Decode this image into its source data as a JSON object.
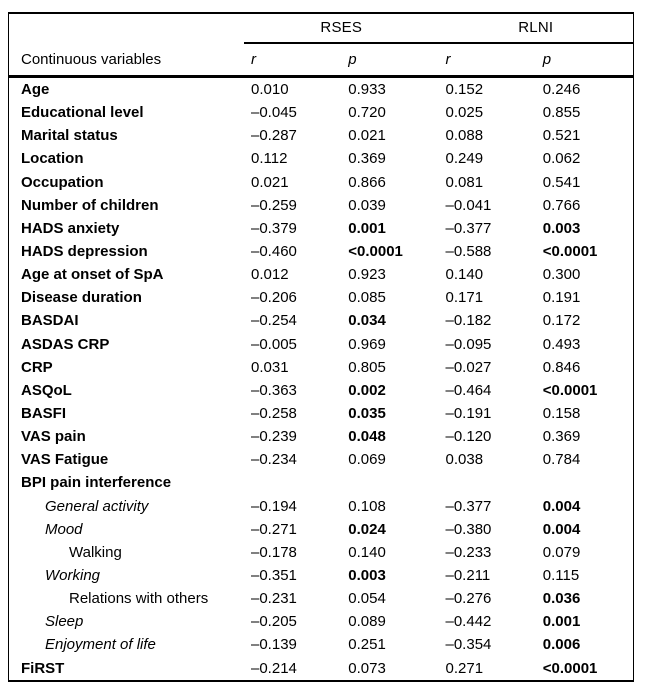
{
  "table": {
    "col_groups": [
      {
        "label": "RSES"
      },
      {
        "label": "RLNI"
      }
    ],
    "header": {
      "stub": "Continuous variables",
      "sub_cols": [
        "r",
        "p",
        "r",
        "p"
      ]
    },
    "rows": [
      {
        "label": "Age",
        "indent": 0,
        "italic": false,
        "bold": true,
        "values": [
          {
            "t": "0.010",
            "b": false
          },
          {
            "t": "0.933",
            "b": false
          },
          {
            "t": "0.152",
            "b": false
          },
          {
            "t": "0.246",
            "b": false
          }
        ]
      },
      {
        "label": "Educational level",
        "indent": 0,
        "italic": false,
        "bold": true,
        "values": [
          {
            "t": "–0.045",
            "b": false
          },
          {
            "t": "0.720",
            "b": false
          },
          {
            "t": "0.025",
            "b": false
          },
          {
            "t": "0.855",
            "b": false
          }
        ]
      },
      {
        "label": "Marital status",
        "indent": 0,
        "italic": false,
        "bold": true,
        "values": [
          {
            "t": "–0.287",
            "b": false
          },
          {
            "t": "0.021",
            "b": false
          },
          {
            "t": "0.088",
            "b": false
          },
          {
            "t": "0.521",
            "b": false
          }
        ]
      },
      {
        "label": "Location",
        "indent": 0,
        "italic": false,
        "bold": true,
        "values": [
          {
            "t": "0.112",
            "b": false
          },
          {
            "t": "0.369",
            "b": false
          },
          {
            "t": "0.249",
            "b": false
          },
          {
            "t": "0.062",
            "b": false
          }
        ]
      },
      {
        "label": "Occupation",
        "indent": 0,
        "italic": false,
        "bold": true,
        "values": [
          {
            "t": "0.021",
            "b": false
          },
          {
            "t": "0.866",
            "b": false
          },
          {
            "t": "0.081",
            "b": false
          },
          {
            "t": "0.541",
            "b": false
          }
        ]
      },
      {
        "label": "Number of children",
        "indent": 0,
        "italic": false,
        "bold": true,
        "values": [
          {
            "t": "–0.259",
            "b": false
          },
          {
            "t": "0.039",
            "b": false
          },
          {
            "t": "–0.041",
            "b": false
          },
          {
            "t": "0.766",
            "b": false
          }
        ]
      },
      {
        "label": "HADS anxiety",
        "indent": 0,
        "italic": false,
        "bold": true,
        "values": [
          {
            "t": "–0.379",
            "b": false
          },
          {
            "t": "0.001",
            "b": true
          },
          {
            "t": "–0.377",
            "b": false
          },
          {
            "t": "0.003",
            "b": true
          }
        ]
      },
      {
        "label": "HADS depression",
        "indent": 0,
        "italic": false,
        "bold": true,
        "values": [
          {
            "t": "–0.460",
            "b": false
          },
          {
            "t": "<0.0001",
            "b": true
          },
          {
            "t": "–0.588",
            "b": false
          },
          {
            "t": "<0.0001",
            "b": true
          }
        ]
      },
      {
        "label": "Age at onset of SpA",
        "indent": 0,
        "italic": false,
        "bold": true,
        "values": [
          {
            "t": "0.012",
            "b": false
          },
          {
            "t": "0.923",
            "b": false
          },
          {
            "t": "0.140",
            "b": false
          },
          {
            "t": "0.300",
            "b": false
          }
        ]
      },
      {
        "label": "Disease duration",
        "indent": 0,
        "italic": false,
        "bold": true,
        "values": [
          {
            "t": "–0.206",
            "b": false
          },
          {
            "t": "0.085",
            "b": false
          },
          {
            "t": "0.171",
            "b": false
          },
          {
            "t": "0.191",
            "b": false
          }
        ]
      },
      {
        "label": "BASDAI",
        "indent": 0,
        "italic": false,
        "bold": true,
        "values": [
          {
            "t": "–0.254",
            "b": false
          },
          {
            "t": "0.034",
            "b": true
          },
          {
            "t": "–0.182",
            "b": false
          },
          {
            "t": "0.172",
            "b": false
          }
        ]
      },
      {
        "label": "ASDAS CRP",
        "indent": 0,
        "italic": false,
        "bold": true,
        "values": [
          {
            "t": "–0.005",
            "b": false
          },
          {
            "t": "0.969",
            "b": false
          },
          {
            "t": "–0.095",
            "b": false
          },
          {
            "t": "0.493",
            "b": false
          }
        ]
      },
      {
        "label": "CRP",
        "indent": 0,
        "italic": false,
        "bold": true,
        "values": [
          {
            "t": "0.031",
            "b": false
          },
          {
            "t": "0.805",
            "b": false
          },
          {
            "t": "–0.027",
            "b": false
          },
          {
            "t": "0.846",
            "b": false
          }
        ]
      },
      {
        "label": "ASQoL",
        "indent": 0,
        "italic": false,
        "bold": true,
        "values": [
          {
            "t": "–0.363",
            "b": false
          },
          {
            "t": "0.002",
            "b": true
          },
          {
            "t": "–0.464",
            "b": false
          },
          {
            "t": "<0.0001",
            "b": true
          }
        ]
      },
      {
        "label": "BASFI",
        "indent": 0,
        "italic": false,
        "bold": true,
        "values": [
          {
            "t": "–0.258",
            "b": false
          },
          {
            "t": "0.035",
            "b": true
          },
          {
            "t": "–0.191",
            "b": false
          },
          {
            "t": "0.158",
            "b": false
          }
        ]
      },
      {
        "label": "VAS pain",
        "indent": 0,
        "italic": false,
        "bold": true,
        "values": [
          {
            "t": "–0.239",
            "b": false
          },
          {
            "t": "0.048",
            "b": true
          },
          {
            "t": "–0.120",
            "b": false
          },
          {
            "t": "0.369",
            "b": false
          }
        ]
      },
      {
        "label": "VAS Fatigue",
        "indent": 0,
        "italic": false,
        "bold": true,
        "values": [
          {
            "t": "–0.234",
            "b": false
          },
          {
            "t": "0.069",
            "b": false
          },
          {
            "t": "0.038",
            "b": false
          },
          {
            "t": "0.784",
            "b": false
          }
        ]
      },
      {
        "label": "BPI pain interference",
        "indent": 0,
        "italic": false,
        "bold": true,
        "values": [
          {
            "t": "",
            "b": false
          },
          {
            "t": "",
            "b": false
          },
          {
            "t": "",
            "b": false
          },
          {
            "t": "",
            "b": false
          }
        ]
      },
      {
        "label": "General activity",
        "indent": 1,
        "italic": true,
        "bold": false,
        "values": [
          {
            "t": "–0.194",
            "b": false
          },
          {
            "t": "0.108",
            "b": false
          },
          {
            "t": "–0.377",
            "b": false
          },
          {
            "t": "0.004",
            "b": true
          }
        ]
      },
      {
        "label": "Mood",
        "indent": 1,
        "italic": true,
        "bold": false,
        "values": [
          {
            "t": "–0.271",
            "b": false
          },
          {
            "t": "0.024",
            "b": true
          },
          {
            "t": "–0.380",
            "b": false
          },
          {
            "t": "0.004",
            "b": true
          }
        ]
      },
      {
        "label": "Walking",
        "indent": 2,
        "italic": false,
        "bold": false,
        "values": [
          {
            "t": "–0.178",
            "b": false
          },
          {
            "t": "0.140",
            "b": false
          },
          {
            "t": "–0.233",
            "b": false
          },
          {
            "t": "0.079",
            "b": false
          }
        ]
      },
      {
        "label": "Working",
        "indent": 1,
        "italic": true,
        "bold": false,
        "values": [
          {
            "t": "–0.351",
            "b": false
          },
          {
            "t": "0.003",
            "b": true
          },
          {
            "t": "–0.211",
            "b": false
          },
          {
            "t": "0.115",
            "b": false
          }
        ]
      },
      {
        "label": "Relations with others",
        "indent": 2,
        "italic": false,
        "bold": false,
        "values": [
          {
            "t": "–0.231",
            "b": false
          },
          {
            "t": "0.054",
            "b": false
          },
          {
            "t": "–0.276",
            "b": false
          },
          {
            "t": "0.036",
            "b": true
          }
        ]
      },
      {
        "label": "Sleep",
        "indent": 1,
        "italic": true,
        "bold": false,
        "values": [
          {
            "t": "–0.205",
            "b": false
          },
          {
            "t": "0.089",
            "b": false
          },
          {
            "t": "–0.442",
            "b": false
          },
          {
            "t": "0.001",
            "b": true
          }
        ]
      },
      {
        "label": "Enjoyment of life",
        "indent": 1,
        "italic": true,
        "bold": false,
        "values": [
          {
            "t": "–0.139",
            "b": false
          },
          {
            "t": "0.251",
            "b": false
          },
          {
            "t": "–0.354",
            "b": false
          },
          {
            "t": "0.006",
            "b": true
          }
        ]
      },
      {
        "label": "FiRST",
        "indent": 0,
        "italic": false,
        "bold": true,
        "values": [
          {
            "t": "–0.214",
            "b": false
          },
          {
            "t": "0.073",
            "b": false
          },
          {
            "t": "0.271",
            "b": false
          },
          {
            "t": "<0.0001",
            "b": true
          }
        ]
      }
    ]
  }
}
